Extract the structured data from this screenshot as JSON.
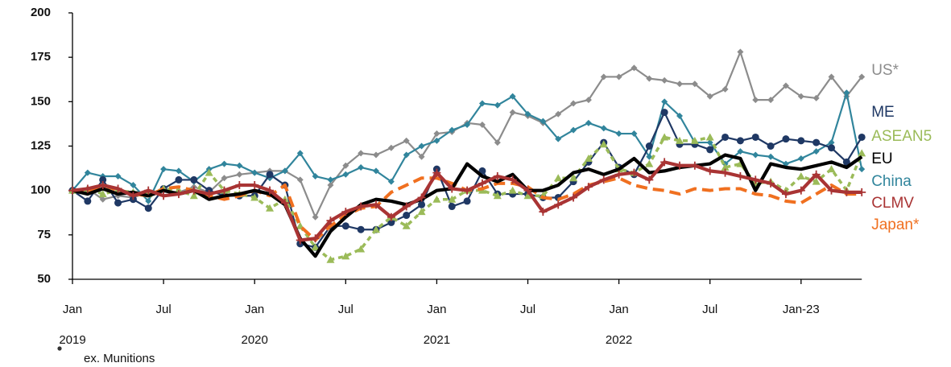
{
  "chart_data": {
    "type": "line",
    "footnote": "ex. Munitions",
    "categories": [
      "Jan",
      null,
      null,
      null,
      null,
      null,
      "Jul",
      null,
      null,
      null,
      null,
      null,
      "Jan",
      null,
      null,
      null,
      null,
      null,
      "Jul",
      null,
      null,
      null,
      null,
      null,
      "Jan",
      null,
      null,
      null,
      null,
      null,
      "Jul",
      null,
      null,
      null,
      null,
      null,
      "Jan",
      null,
      null,
      null,
      null,
      null,
      "Jul",
      null,
      null,
      null,
      null,
      null,
      "Jan-23",
      null,
      null,
      null,
      null
    ],
    "category_years": [
      "2019",
      null,
      null,
      null,
      null,
      null,
      null,
      null,
      null,
      null,
      null,
      null,
      "2020",
      null,
      null,
      null,
      null,
      null,
      null,
      null,
      null,
      null,
      null,
      null,
      "2021",
      null,
      null,
      null,
      null,
      null,
      null,
      null,
      null,
      null,
      null,
      null,
      "2022",
      null,
      null,
      null,
      null,
      null,
      null,
      null,
      null,
      null,
      null,
      null,
      null,
      null,
      null,
      null,
      null
    ],
    "ylim": [
      50,
      200
    ],
    "yticks": [
      50,
      75,
      100,
      125,
      150,
      175,
      200
    ],
    "series": [
      {
        "name": "US*",
        "color": "#8c8c8c",
        "line_style": "solid",
        "marker": "diamond",
        "values": [
          100,
          101,
          95,
          97,
          96,
          99,
          100,
          99,
          102,
          99,
          107,
          109,
          110,
          111,
          111,
          106,
          85,
          103,
          114,
          121,
          120,
          124,
          128,
          119,
          132,
          133,
          138,
          137,
          127,
          144,
          142,
          138,
          143,
          149,
          151,
          164,
          164,
          169,
          163,
          162,
          160,
          160,
          153,
          157,
          178,
          151,
          151,
          159,
          153,
          152,
          164,
          153,
          164
        ]
      },
      {
        "name": "ME",
        "color": "#1f3864",
        "line_style": "solid",
        "marker": "circle",
        "values": [
          100,
          94,
          106,
          93,
          95,
          90,
          101,
          106,
          106,
          100,
          97,
          97,
          97,
          109,
          103,
          70,
          68,
          80,
          80,
          78,
          78,
          82,
          86,
          92,
          112,
          91,
          94,
          111,
          98,
          98,
          98,
          96,
          96,
          105,
          116,
          127,
          113,
          109,
          125,
          144,
          126,
          126,
          123,
          130,
          128,
          130,
          125,
          129,
          128,
          127,
          124,
          116,
          130
        ]
      },
      {
        "name": "ASEAN5",
        "color": "#9bbb59",
        "line_style": "dotted",
        "marker": "triangle",
        "values": [
          100,
          101,
          98,
          100,
          99,
          98,
          101,
          100,
          97,
          110,
          100,
          98,
          96,
          90,
          95,
          80,
          68,
          61,
          63,
          67,
          78,
          85,
          80,
          88,
          95,
          95,
          100,
          100,
          97,
          100,
          97,
          97,
          107,
          107,
          118,
          126,
          112,
          110,
          115,
          130,
          128,
          128,
          130,
          113,
          115,
          104,
          105,
          100,
          108,
          105,
          112,
          100,
          121
        ]
      },
      {
        "name": "EU",
        "color": "#000000",
        "line_style": "thick",
        "marker": "none",
        "values": [
          100,
          98,
          101,
          98,
          99,
          97,
          100,
          98,
          100,
          95,
          97,
          98,
          100,
          98,
          92,
          73,
          63,
          77,
          85,
          92,
          95,
          94,
          92,
          95,
          100,
          101,
          115,
          108,
          105,
          109,
          100,
          100,
          103,
          110,
          112,
          109,
          112,
          118,
          110,
          111,
          113,
          114,
          115,
          120,
          118,
          100,
          115,
          113,
          112,
          114,
          116,
          113,
          119
        ]
      },
      {
        "name": "China",
        "color": "#31859c",
        "line_style": "solid",
        "marker": "diamond",
        "values": [
          100,
          110,
          108,
          108,
          103,
          94,
          112,
          111,
          105,
          112,
          115,
          114,
          110,
          107,
          111,
          121,
          108,
          106,
          109,
          113,
          111,
          105,
          120,
          125,
          128,
          134,
          137,
          149,
          148,
          153,
          143,
          139,
          129,
          134,
          138,
          135,
          132,
          132,
          119,
          150,
          142,
          127,
          127,
          115,
          122,
          120,
          119,
          115,
          118,
          122,
          127,
          155,
          112
        ]
      },
      {
        "name": "CLMV",
        "color": "#a93434",
        "line_style": "thick",
        "marker": "plus",
        "values": [
          100,
          101,
          103,
          101,
          97,
          100,
          97,
          98,
          100,
          98,
          100,
          103,
          103,
          100,
          93,
          72,
          73,
          83,
          88,
          91,
          92,
          85,
          91,
          96,
          110,
          101,
          100,
          104,
          108,
          106,
          100,
          88,
          92,
          96,
          102,
          106,
          109,
          110,
          106,
          116,
          114,
          114,
          111,
          110,
          108,
          106,
          104,
          98,
          100,
          109,
          100,
          99,
          99
        ]
      },
      {
        "name": "Japan*",
        "color": "#f07020",
        "line_style": "dashed",
        "marker": "none",
        "values": [
          100,
          99,
          103,
          100,
          98,
          97,
          101,
          102,
          100,
          97,
          95,
          97,
          100,
          97,
          103,
          80,
          72,
          80,
          86,
          90,
          91,
          99,
          103,
          107,
          107,
          104,
          100,
          101,
          104,
          104,
          102,
          96,
          95,
          98,
          103,
          105,
          107,
          103,
          101,
          100,
          98,
          101,
          100,
          101,
          101,
          98,
          97,
          94,
          93,
          98,
          103,
          98,
          98
        ]
      }
    ]
  }
}
